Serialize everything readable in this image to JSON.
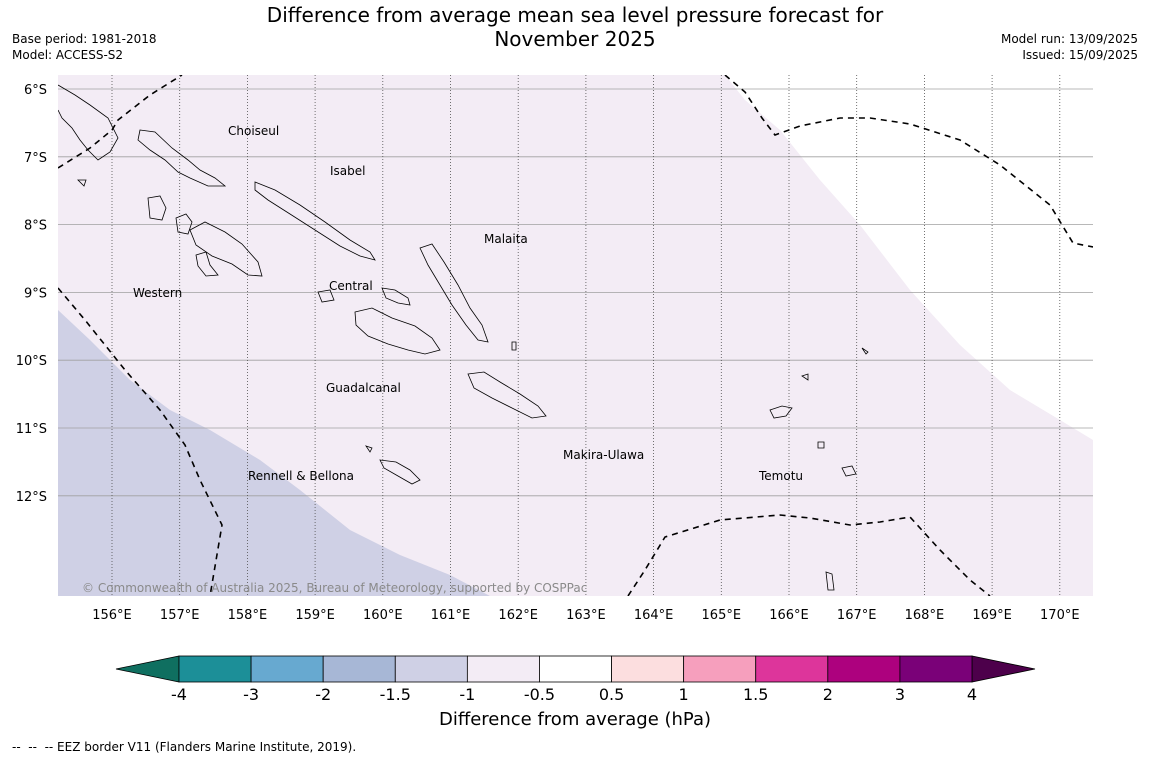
{
  "header": {
    "title_line1": "Difference from average mean sea level pressure forecast for",
    "title_line2": "November 2025",
    "base_period": "Base period: 1981-2018",
    "model": "Model: ACCESS-S2",
    "model_run": "Model run: 13/09/2025",
    "issued": "Issued: 15/09/2025"
  },
  "map": {
    "lat_labels": [
      "6°S",
      "7°S",
      "8°S",
      "9°S",
      "10°S",
      "11°S",
      "12°S"
    ],
    "lon_labels": [
      "156°E",
      "157°E",
      "158°E",
      "159°E",
      "160°E",
      "161°E",
      "162°E",
      "163°E",
      "164°E",
      "165°E",
      "166°E",
      "167°E",
      "168°E",
      "169°E",
      "170°E"
    ],
    "regions": [
      "Choiseul",
      "Isabel",
      "Malaita",
      "Western",
      "Central",
      "Guadalcanal",
      "Makira-Ulawa",
      "Rennell & Bellona",
      "Temotu"
    ],
    "copyright": "© Commonwealth of Australia 2025, Bureau of Meteorology, supported by COSPPac",
    "fill_colors": {
      "neg_0_5_to_1": "#f3ecf5",
      "neg_1_to_1_5": "#cfd0e5",
      "neutral": "#ffffff"
    }
  },
  "colorbar": {
    "title": "Difference from average (hPa)",
    "tick_labels": [
      "-4",
      "-3",
      "-2",
      "-1.5",
      "-1",
      "-0.5",
      "0.5",
      "1",
      "1.5",
      "2",
      "3",
      "4"
    ],
    "colors": [
      "#1c8f98",
      "#67a9d0",
      "#a7b7d6",
      "#cfd0e5",
      "#f3ecf5",
      "#ffffff",
      "#fcdedf",
      "#f69fbd",
      "#dd359b",
      "#ad017e",
      "#7a0178"
    ],
    "extend_low_color": "#0f6f60",
    "extend_high_color": "#4d004b"
  },
  "footnote": "--  --  -- EEZ border V11 (Flanders Marine Institute, 2019)."
}
